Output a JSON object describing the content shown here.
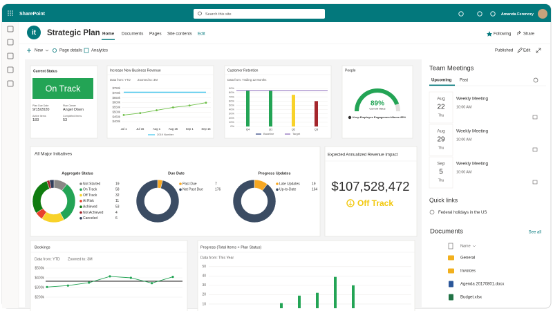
{
  "topbar": {
    "app": "SharePoint",
    "search": "Search this site",
    "user": "Amanda Ferenczy"
  },
  "site": {
    "logo": "it",
    "title": "Strategic Plan",
    "nav": [
      "Home",
      "Documents",
      "Pages",
      "Site contents",
      "Edit"
    ],
    "actions": [
      "Following",
      "Share"
    ]
  },
  "commands": {
    "left": [
      "New",
      "Page details",
      "Analytics"
    ],
    "right": [
      "Published",
      "Edit"
    ]
  },
  "status_card": {
    "title": "Current Status",
    "status": "On Track",
    "color": "#23a455",
    "fields": [
      {
        "label": "Plan Due Date",
        "value": "9/15/2020"
      },
      {
        "label": "Plan Owner",
        "value": "Angel Olsen"
      },
      {
        "label": "Active Items",
        "value": "183"
      },
      {
        "label": "Completed Items",
        "value": "53"
      }
    ]
  },
  "revenue_chart": {
    "type": "line",
    "title": "Increase New Business Revenue",
    "filters": [
      "Data from: YTD",
      "Zoomed to: 3M"
    ],
    "categories": [
      "Jul 1",
      "Jul 15",
      "Aug 1",
      "Aug 15",
      "Sep 1",
      "Sep 15"
    ],
    "series": [
      {
        "name": "2019 Number",
        "color": "#3ec4ec",
        "values": [
          710000,
          710000,
          710000,
          710000,
          710000,
          710000
        ]
      },
      {
        "color": "#6cbe45",
        "markers": true,
        "values": [
          470000,
          490000,
          520000,
          550000,
          570000,
          600000
        ]
      }
    ],
    "ylim": [
      400000,
      750000
    ],
    "yticks": [
      {
        "value": 750000,
        "label": "$750k"
      },
      {
        "value": 700000,
        "label": "$700k"
      },
      {
        "value": 650000,
        "label": "$650k"
      },
      {
        "value": 600000,
        "label": "$600k"
      },
      {
        "value": 550000,
        "label": "$550k"
      },
      {
        "value": 500000,
        "label": "$500k"
      },
      {
        "value": 450000,
        "label": "$450k"
      },
      {
        "value": 400000,
        "label": "$400k"
      }
    ]
  },
  "retention_chart": {
    "type": "bar",
    "title": "Customer Retention",
    "filters": [
      "Data from: Trailing 12 Months"
    ],
    "categories": [
      "Q4",
      "Q1",
      "Q2",
      "Q3"
    ],
    "values": [
      85,
      85,
      75,
      60
    ],
    "colors": [
      "#23a455",
      "#23a455",
      "#f8d22a",
      "#a4262c"
    ],
    "target": 85,
    "legend": [
      {
        "name": "Baseline",
        "color": "#243a7a"
      },
      {
        "name": "Target",
        "color": "#8764b8"
      }
    ],
    "ylim": [
      0,
      90
    ],
    "yticks": [
      {
        "value": 90,
        "label": "90%"
      },
      {
        "value": 80,
        "label": "80%"
      },
      {
        "value": 70,
        "label": "70%"
      },
      {
        "value": 60,
        "label": "60%"
      },
      {
        "value": 50,
        "label": "50%"
      },
      {
        "value": 40,
        "label": "40%"
      },
      {
        "value": 30,
        "label": "30%"
      },
      {
        "value": 20,
        "label": "20%"
      },
      {
        "value": 10,
        "label": "10%"
      },
      {
        "value": 0,
        "label": "0%"
      }
    ]
  },
  "people": {
    "title": "People",
    "gauge": {
      "type": "gauge",
      "value": 89,
      "value_label": "89%",
      "range": [
        0,
        100
      ],
      "color": "#23a455",
      "caption": "Current Value",
      "goal": "Keep Employee Engagement Above 85%"
    }
  },
  "initiatives": {
    "title": "All Major Initiatives",
    "donuts": [
      {
        "type": "pie",
        "title": "Aggregate Status",
        "items": [
          {
            "label": "Not Started",
            "value": 19,
            "color": "#8a8886"
          },
          {
            "label": "On Track",
            "value": 58,
            "color": "#23a455"
          },
          {
            "label": "Off Track",
            "value": 32,
            "color": "#f8d22a"
          },
          {
            "label": "At Risk",
            "value": 11,
            "color": "#e8412c"
          },
          {
            "label": "Achieved",
            "value": 53,
            "color": "#107c10"
          },
          {
            "label": "Not Achieved",
            "value": 4,
            "color": "#a4262c"
          },
          {
            "label": "Canceled",
            "value": 6,
            "color": "#323d5a"
          }
        ]
      },
      {
        "type": "pie",
        "title": "Due Date",
        "items": [
          {
            "label": "Past Due",
            "value": 7,
            "color": "#f7a823"
          },
          {
            "label": "Not Past Due",
            "value": 176,
            "color": "#3b4c63"
          }
        ]
      },
      {
        "type": "pie",
        "title": "Progress Updates",
        "items": [
          {
            "label": "Late Updates",
            "value": 19,
            "color": "#f7a823"
          },
          {
            "label": "Up-to-Date",
            "value": 164,
            "color": "#3b4c63"
          }
        ]
      }
    ]
  },
  "revenue_impact": {
    "title": "Expected Annualized Revenue Impact",
    "value": "$107,528,472",
    "status": "Off Track",
    "status_color": "#f2c80f"
  },
  "bookings_chart": {
    "type": "line",
    "title": "Bookings",
    "filters": [
      "Data from: YTD",
      "Zoomed to: 3M"
    ],
    "values": [
      305000,
      320000,
      350000,
      415000,
      400000,
      345000,
      410000
    ],
    "color": "#23a455",
    "target": 365000,
    "target_color": "#323130",
    "ylim": [
      200000,
      500000
    ],
    "yticks": [
      {
        "value": 500000,
        "label": "$500k"
      },
      {
        "value": 400000,
        "label": "$400k"
      },
      {
        "value": 300000,
        "label": "$300k"
      },
      {
        "value": 200000,
        "label": "$200k"
      }
    ]
  },
  "progress_chart": {
    "type": "bar",
    "title": "Progress (Total Items + Plan Status)",
    "filters": [
      "Data from: This Year"
    ],
    "values": [
      11,
      19,
      22,
      39,
      30
    ],
    "color": "#23a455",
    "ylim": [
      0,
      55
    ],
    "yticks": [
      50,
      40,
      30,
      20,
      10
    ]
  },
  "meetings": {
    "title": "Team Meetings",
    "tabs": [
      "Upcoming",
      "Past"
    ],
    "events": [
      {
        "month": "Aug",
        "day": "22",
        "weekday": "Thu",
        "title": "Weekly Meeting",
        "time": "10:00 AM"
      },
      {
        "month": "Aug",
        "day": "29",
        "weekday": "Thu",
        "title": "Weekly Meeting",
        "time": "10:00 AM"
      },
      {
        "month": "Sep",
        "day": "5",
        "weekday": "Thu",
        "title": "Weekly Meeting",
        "time": "10:00 AM"
      }
    ]
  },
  "quick_links": {
    "title": "Quick links",
    "links": [
      "Federal holidays in the US"
    ]
  },
  "documents": {
    "title": "Documents",
    "see_all": "See all",
    "column": "Name",
    "items": [
      "General",
      "Invoices",
      "Agenda 20170801.docx",
      "Budget.xlsx"
    ]
  }
}
